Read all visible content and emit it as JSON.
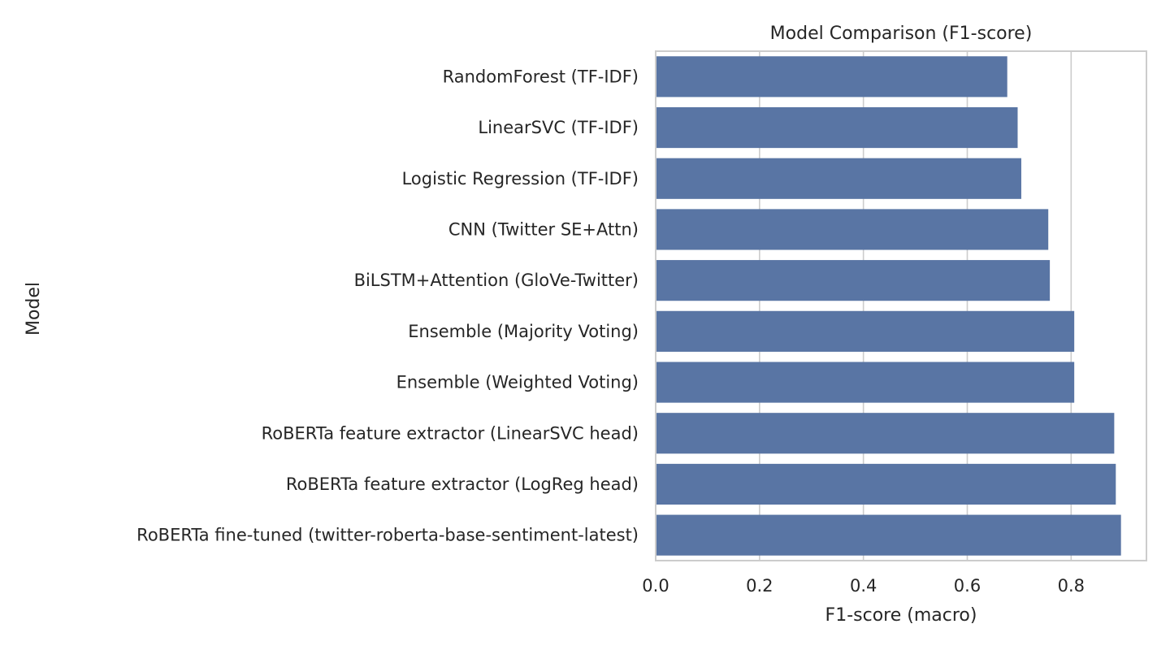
{
  "chart_data": {
    "type": "bar",
    "orientation": "horizontal",
    "title": "Model Comparison (F1-score)",
    "xlabel": "F1-score (macro)",
    "ylabel": "Model",
    "xlim": [
      0,
      0.945
    ],
    "xticks": [
      "0.0",
      "0.2",
      "0.4",
      "0.6",
      "0.8"
    ],
    "xtick_values": [
      0.0,
      0.2,
      0.4,
      0.6,
      0.8
    ],
    "grid": true,
    "bar_color": "#5975a4",
    "categories": [
      "RandomForest (TF-IDF)",
      "LinearSVC (TF-IDF)",
      "Logistic Regression (TF-IDF)",
      "CNN (Twitter SE+Attn)",
      "BiLSTM+Attention (GloVe-Twitter)",
      "Ensemble (Majority Voting)",
      "Ensemble (Weighted Voting)",
      "RoBERTa feature extractor (LinearSVC head)",
      "RoBERTa feature extractor (LogReg head)",
      "RoBERTa fine-tuned (twitter-roberta-base-sentiment-latest)"
    ],
    "values": [
      0.677,
      0.697,
      0.704,
      0.756,
      0.759,
      0.806,
      0.806,
      0.883,
      0.886,
      0.896
    ]
  }
}
